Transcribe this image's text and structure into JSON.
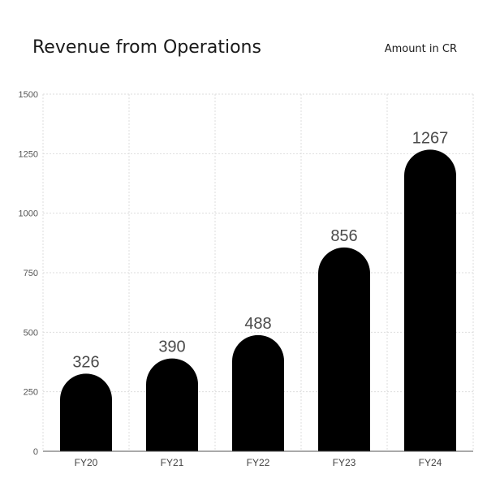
{
  "chart_data": {
    "type": "bar",
    "title": "Revenue from Operations",
    "unit_label": "Amount in CR",
    "categories": [
      "FY20",
      "FY21",
      "FY22",
      "FY23",
      "FY24"
    ],
    "values": [
      326,
      390,
      488,
      856,
      1267
    ],
    "ylim": [
      0,
      1500
    ],
    "yticks": [
      0,
      250,
      500,
      750,
      1000,
      1250,
      1500
    ],
    "grid": true,
    "bar_color": "#000000"
  }
}
